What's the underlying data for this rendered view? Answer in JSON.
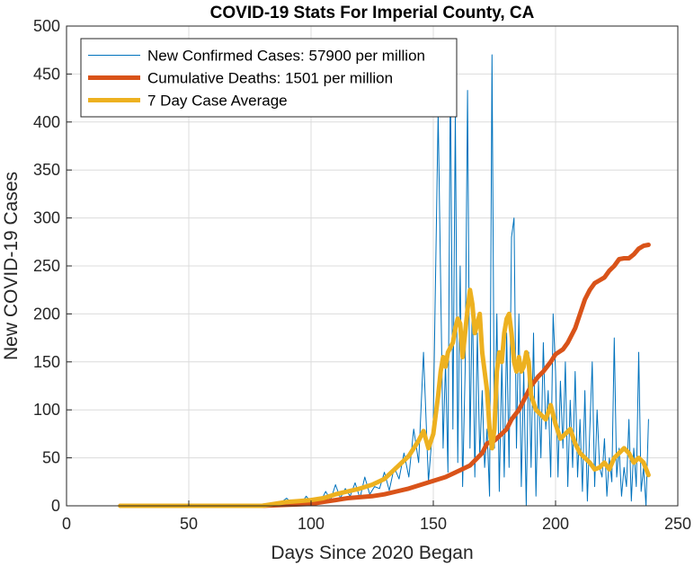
{
  "chart_data": {
    "type": "line",
    "title": "COVID-19 Stats For Imperial County, CA",
    "xlabel": "Days Since 2020 Began",
    "ylabel": "New COVID-19 Cases",
    "xlim": [
      0,
      250
    ],
    "ylim": [
      0,
      500
    ],
    "xticks": [
      0,
      50,
      100,
      150,
      200,
      250
    ],
    "yticks": [
      0,
      50,
      100,
      150,
      200,
      250,
      300,
      350,
      400,
      450,
      500
    ],
    "grid": true,
    "legend_position": "top-left",
    "series": [
      {
        "name": "New Confirmed Cases: 57900 per million",
        "color": "#0072bd",
        "style": "thin",
        "x": [
          22,
          40,
          60,
          80,
          85,
          88,
          90,
          92,
          94,
          96,
          98,
          100,
          102,
          104,
          106,
          108,
          110,
          112,
          114,
          116,
          118,
          120,
          122,
          124,
          126,
          128,
          130,
          132,
          134,
          136,
          138,
          140,
          142,
          144,
          146,
          148,
          150,
          152,
          154,
          155,
          156,
          157,
          158,
          159,
          160,
          161,
          162,
          163,
          164,
          165,
          166,
          167,
          168,
          169,
          170,
          171,
          172,
          173,
          174,
          175,
          176,
          177,
          178,
          179,
          180,
          181,
          182,
          183,
          184,
          185,
          186,
          187,
          188,
          189,
          190,
          191,
          192,
          193,
          194,
          195,
          196,
          197,
          198,
          199,
          200,
          201,
          202,
          203,
          204,
          205,
          206,
          207,
          208,
          209,
          210,
          211,
          212,
          213,
          214,
          215,
          216,
          217,
          218,
          219,
          220,
          221,
          222,
          223,
          224,
          225,
          226,
          227,
          228,
          229,
          230,
          231,
          232,
          233,
          234,
          235,
          236,
          237,
          238
        ],
        "values": [
          0,
          0,
          0,
          0,
          2,
          4,
          8,
          3,
          6,
          2,
          10,
          4,
          8,
          5,
          15,
          6,
          22,
          8,
          18,
          10,
          24,
          8,
          30,
          12,
          20,
          18,
          35,
          16,
          40,
          28,
          55,
          30,
          80,
          45,
          160,
          25,
          90,
          410,
          60,
          150,
          35,
          460,
          80,
          410,
          45,
          250,
          20,
          140,
          433,
          60,
          220,
          30,
          180,
          50,
          120,
          40,
          80,
          10,
          470,
          60,
          200,
          15,
          150,
          30,
          180,
          40,
          280,
          300,
          60,
          200,
          20,
          140,
          0,
          160,
          40,
          180,
          10,
          130,
          50,
          170,
          80,
          120,
          30,
          200,
          140,
          30,
          130,
          60,
          150,
          20,
          110,
          40,
          140,
          30,
          90,
          15,
          120,
          5,
          80,
          150,
          20,
          100,
          40,
          30,
          70,
          10,
          50,
          25,
          175,
          30,
          60,
          10,
          40,
          20,
          90,
          5,
          60,
          20,
          160,
          15,
          40,
          0,
          90
        ]
      },
      {
        "name": "Cumulative Deaths: 1501 per million",
        "color": "#d95319",
        "style": "thick",
        "x": [
          22,
          80,
          90,
          100,
          105,
          110,
          115,
          120,
          125,
          130,
          135,
          140,
          145,
          150,
          155,
          160,
          165,
          170,
          172,
          175,
          178,
          180,
          182,
          185,
          188,
          190,
          193,
          195,
          198,
          200,
          203,
          205,
          208,
          210,
          212,
          214,
          216,
          218,
          220,
          222,
          224,
          226,
          228,
          230,
          232,
          234,
          236,
          238
        ],
        "values": [
          0,
          0,
          1,
          2,
          4,
          6,
          8,
          9,
          10,
          12,
          15,
          18,
          22,
          26,
          30,
          36,
          42,
          55,
          65,
          68,
          75,
          80,
          90,
          100,
          115,
          125,
          135,
          140,
          150,
          158,
          163,
          170,
          185,
          200,
          215,
          225,
          232,
          235,
          238,
          245,
          250,
          257,
          258,
          258,
          262,
          268,
          271,
          272
        ]
      },
      {
        "name": "7 Day Case Average",
        "color": "#edb120",
        "style": "thick",
        "x": [
          22,
          80,
          85,
          90,
          95,
          100,
          105,
          110,
          115,
          120,
          125,
          130,
          135,
          140,
          144,
          146,
          148,
          150,
          152,
          153,
          154,
          155,
          156,
          157,
          158,
          159,
          160,
          161,
          162,
          163,
          164,
          165,
          166,
          167,
          168,
          169,
          170,
          171,
          172,
          173,
          174,
          175,
          176,
          177,
          178,
          179,
          180,
          181,
          182,
          183,
          184,
          185,
          186,
          187,
          188,
          189,
          190,
          192,
          194,
          196,
          198,
          200,
          202,
          204,
          206,
          208,
          210,
          212,
          214,
          216,
          218,
          220,
          222,
          224,
          226,
          228,
          230,
          232,
          234,
          236,
          238
        ],
        "values": [
          0,
          0,
          2,
          4,
          5,
          6,
          8,
          12,
          15,
          18,
          22,
          28,
          40,
          52,
          68,
          78,
          60,
          75,
          115,
          140,
          155,
          145,
          160,
          165,
          170,
          185,
          195,
          190,
          155,
          180,
          205,
          225,
          210,
          180,
          190,
          200,
          160,
          140,
          120,
          80,
          60,
          80,
          140,
          160,
          150,
          180,
          195,
          200,
          180,
          150,
          140,
          155,
          140,
          145,
          160,
          150,
          115,
          100,
          95,
          90,
          105,
          85,
          70,
          75,
          80,
          65,
          55,
          50,
          45,
          38,
          40,
          45,
          38,
          50,
          55,
          60,
          55,
          45,
          50,
          45,
          32
        ]
      }
    ]
  }
}
